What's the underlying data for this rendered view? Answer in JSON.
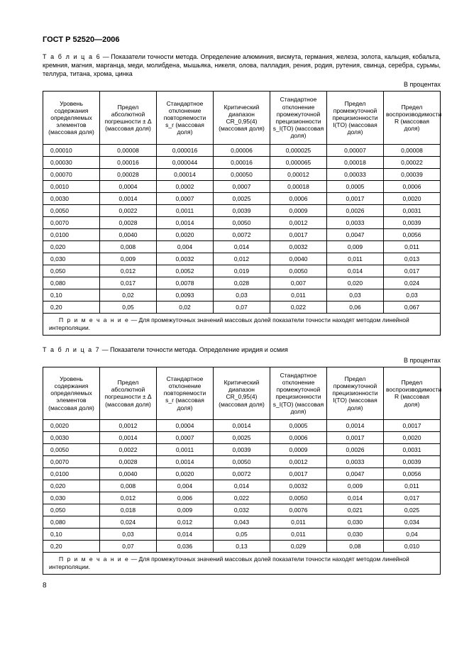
{
  "doc_title": "ГОСТ Р 52520—2006",
  "table6": {
    "caption_lead": "Т а б л и ц а  6",
    "caption_rest": " — Показатели точности метода. Определение алюминия, висмута, германия, железа, золота, кальция, кобальта, кремния, магния, марганца, меди, молибдена, мышьяка, никеля, олова, палладия, рения, родия, рутения, свинца, серебра, сурьмы, теллура, титана, хрома, цинка",
    "unit": "В процентах",
    "headers": [
      "Уровень содержания определяемых элементов (массовая доля)",
      "Предел абсолютной погрешности ± Δ (массовая доля)",
      "Стандартное отклонение повторяемости s_r (массовая доля)",
      "Критический диапазон CR_0,95(4) (массовая доля)",
      "Стандартное отклонение промежуточной прецизионности s_I(TO) (массовая доля)",
      "Предел промежуточной прецизионности I(TO) (массовая доля)",
      "Предел воспроизводимости R (массовая доля)"
    ],
    "rows": [
      [
        "0,00010",
        "0,00008",
        "0,000016",
        "0,00006",
        "0,000025",
        "0,00007",
        "0,00008"
      ],
      [
        "0,00030",
        "0,00016",
        "0,000044",
        "0,00016",
        "0,000065",
        "0,00018",
        "0,00022"
      ],
      [
        "0,00070",
        "0,00028",
        "0,00014",
        "0,00050",
        "0,00012",
        "0,00033",
        "0,00039"
      ],
      [
        "0,0010",
        "0,0004",
        "0,0002",
        "0,0007",
        "0,00018",
        "0,0005",
        "0,0006"
      ],
      [
        "0,0030",
        "0,0014",
        "0,0007",
        "0,0025",
        "0,0006",
        "0,0017",
        "0,0020"
      ],
      [
        "0,0050",
        "0,0022",
        "0,0011",
        "0,0039",
        "0,0009",
        "0,0026",
        "0,0031"
      ],
      [
        "0,0070",
        "0,0028",
        "0,0014",
        "0,0050",
        "0,0012",
        "0,0033",
        "0,0039"
      ],
      [
        "0,0100",
        "0,0040",
        "0,0020",
        "0,0072",
        "0,0017",
        "0,0047",
        "0,0056"
      ],
      [
        "0,020",
        "0,008",
        "0,004",
        "0,014",
        "0,0032",
        "0,009",
        "0,011"
      ],
      [
        "0,030",
        "0,009",
        "0,0032",
        "0,012",
        "0,0040",
        "0,011",
        "0,013"
      ],
      [
        "0,050",
        "0,012",
        "0,0052",
        "0,019",
        "0,0050",
        "0,014",
        "0,017"
      ],
      [
        "0,080",
        "0,017",
        "0,0078",
        "0,028",
        "0,007",
        "0,020",
        "0,024"
      ],
      [
        "0,10",
        "0,02",
        "0,0093",
        "0,03",
        "0,011",
        "0,03",
        "0,03"
      ],
      [
        "0,20",
        "0,05",
        "0,02",
        "0,07",
        "0,022",
        "0,06",
        "0,067"
      ]
    ],
    "note_lead": "П р и м е ч а н и е",
    "note_rest": " — Для промежуточных значений массовых долей показатели точности находят методом линейной интерполяции."
  },
  "table7": {
    "caption_lead": "Т а б л и ц а  7",
    "caption_rest": " — Показатели точности метода. Определение иридия и осмия",
    "unit": "В процентах",
    "headers": [
      "Уровень содержания определяемых элементов (массовая доля)",
      "Предел абсолютной погрешности ± Δ (массовая доля)",
      "Стандартное отклонение повторяемости s_r (массовая доля)",
      "Критический диапазон CR_0,95(4) (массовая доля)",
      "Стандартное отклонение промежуточной прецизионности s_I(TO) (массовая доля)",
      "Предел промежуточной прецизионности I(TO) (массовая доля)",
      "Предел воспроизводимости R (массовая доля)"
    ],
    "rows": [
      [
        "0,0020",
        "0,0012",
        "0,0004",
        "0,0014",
        "0,0005",
        "0,0014",
        "0,0017"
      ],
      [
        "0,0030",
        "0,0014",
        "0,0007",
        "0,0025",
        "0,0006",
        "0,0017",
        "0,0020"
      ],
      [
        "0,0050",
        "0,0022",
        "0,0011",
        "0,0039",
        "0,0009",
        "0,0026",
        "0,0031"
      ],
      [
        "0,0070",
        "0,0028",
        "0,0014",
        "0,0050",
        "0,0012",
        "0,0033",
        "0,0039"
      ],
      [
        "0,0100",
        "0,0040",
        "0,0020",
        "0,0072",
        "0,0017",
        "0,0047",
        "0,0056"
      ],
      [
        "0,020",
        "0,008",
        "0,004",
        "0,014",
        "0,0032",
        "0,009",
        "0,011"
      ],
      [
        "0,030",
        "0,012",
        "0,006",
        "0,022",
        "0,0050",
        "0,014",
        "0,017"
      ],
      [
        "0,050",
        "0,018",
        "0,009",
        "0,032",
        "0,0076",
        "0,021",
        "0,025"
      ],
      [
        "0,080",
        "0,024",
        "0,012",
        "0,043",
        "0,011",
        "0,030",
        "0,034"
      ],
      [
        "0,10",
        "0,03",
        "0,014",
        "0,05",
        "0,011",
        "0,030",
        "0,04"
      ],
      [
        "0,20",
        "0,07",
        "0,036",
        "0,13",
        "0,029",
        "0,08",
        "0,010"
      ]
    ],
    "note_lead": "П р и м е ч а н и е",
    "note_rest": " — Для промежуточных значений массовых долей показатели точности находят методом линейной интерполяции."
  },
  "page_number": "8"
}
